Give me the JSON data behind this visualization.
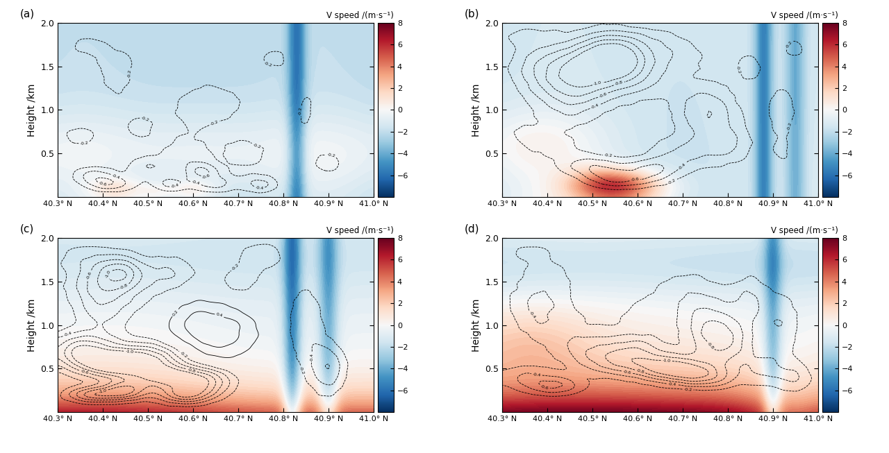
{
  "x_ticks": [
    "40.3° N",
    "40.4° N",
    "40.5° N",
    "40.6° N",
    "40.7° N",
    "40.8° N",
    "40.9° N",
    "41.0° N"
  ],
  "x_values": [
    40.3,
    40.4,
    40.5,
    40.6,
    40.7,
    40.8,
    40.9,
    41.0
  ],
  "y_ticks": [
    0.5,
    1.0,
    1.5,
    2.0
  ],
  "y_label": "Height /km",
  "colorbar_label": "V speed /(m·s⁻¹)",
  "vmin": -8,
  "vmax": 8,
  "cbar_ticks": [
    -6,
    -4,
    -2,
    0,
    2,
    4,
    6,
    8
  ],
  "panel_labels": [
    "(a)",
    "(b)",
    "(c)",
    "(d)"
  ],
  "background_color": "#ffffff"
}
